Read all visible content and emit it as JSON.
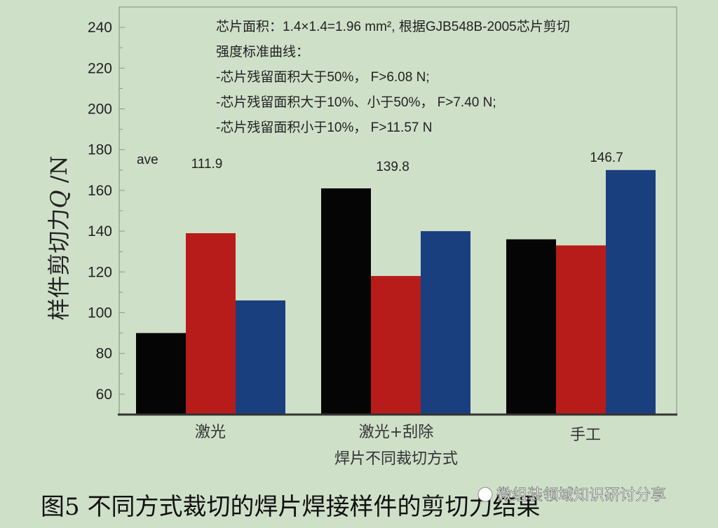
{
  "chart_data": {
    "type": "bar",
    "categories": [
      "激光",
      "激光+刮除",
      "手工"
    ],
    "series": [
      {
        "color": "#050505",
        "values": [
          90,
          161,
          136
        ]
      },
      {
        "color": "#b81c1a",
        "values": [
          139,
          118,
          133
        ]
      },
      {
        "color": "#1a3f7e",
        "values": [
          106,
          140,
          170
        ]
      }
    ],
    "xlabel": "焊片不同裁切方式",
    "ylabel_prefix": "样件剪切力",
    "ylabel_var": "Q",
    "ylabel_suffix": " /N",
    "ylim": [
      50,
      250
    ],
    "yticks": [
      60,
      80,
      100,
      120,
      140,
      160,
      180,
      200,
      220,
      240
    ],
    "grid": false,
    "annotations": {
      "ave_label": "ave",
      "averages": [
        "111.9",
        "139.8",
        "146.7"
      ],
      "notes": [
        "芯片面积：1.4×1.4=1.96 mm², 根据GJB548B-2005芯片剪切",
        "强度标准曲线：",
        "-芯片残留面积大于50%， F>6.08 N;",
        "-芯片残留面积大于10%、小于50%， F>7.40 N;",
        "-芯片残留面积小于10%， F>11.57 N"
      ]
    }
  },
  "caption": "图5  不同方式裁切的焊片焊接样件的剪切力结果",
  "watermark": "微组装领域知识研讨分享"
}
